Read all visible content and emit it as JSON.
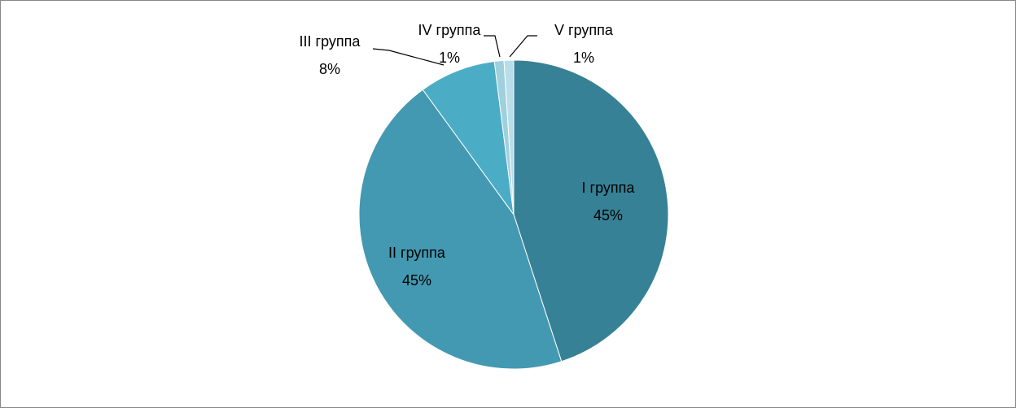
{
  "chart_data": {
    "type": "pie",
    "categories": [
      "I группа",
      "II группа",
      "III группа",
      "IV группа",
      "V группа"
    ],
    "values": [
      45,
      45,
      8,
      1,
      1
    ],
    "value_labels": [
      "45%",
      "45%",
      "8%",
      "1%",
      "1%"
    ],
    "colors": [
      "#378196",
      "#4399b1",
      "#4bacc6",
      "#9fd0de",
      "#b9dee9"
    ]
  }
}
